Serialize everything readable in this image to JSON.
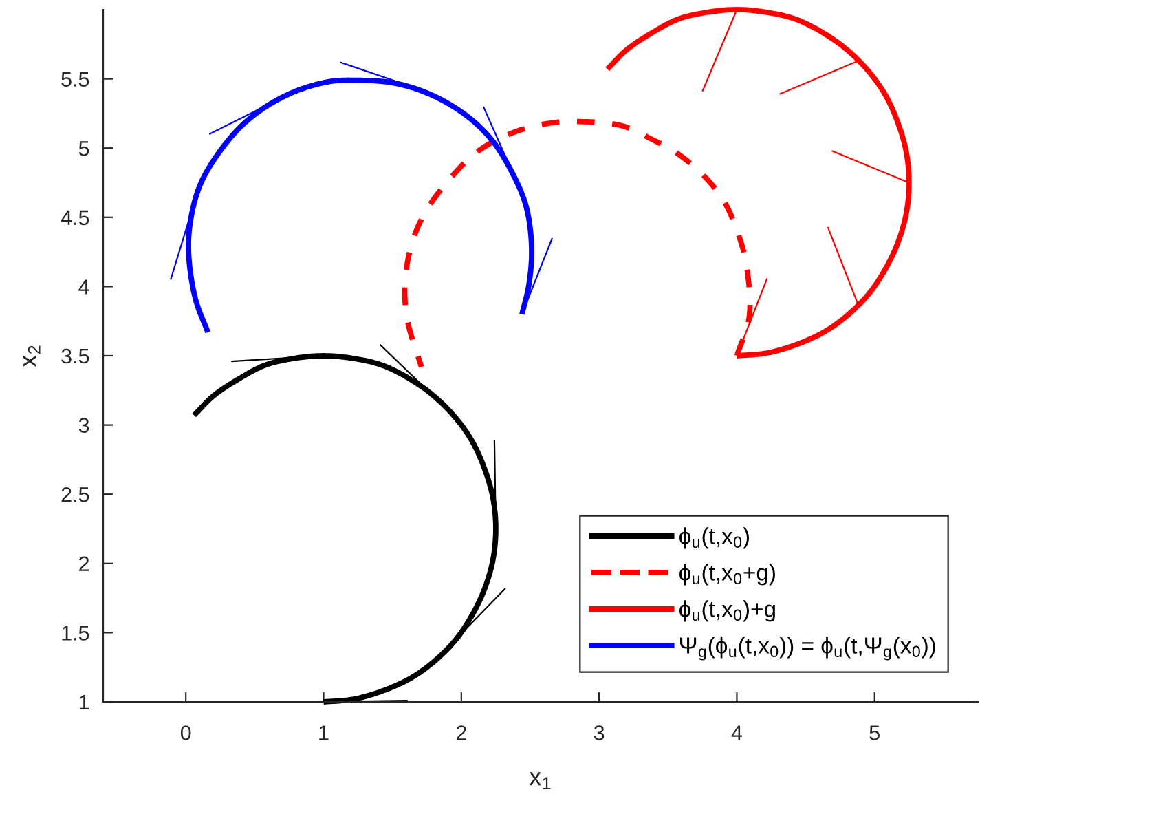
{
  "chart_data": {
    "type": "line",
    "xlabel": "x$_{1}$",
    "ylabel": "x$_{2}$",
    "xlim": [
      -0.6,
      5.75
    ],
    "ylim": [
      1,
      6
    ],
    "xticks": [
      0,
      1,
      2,
      3,
      4,
      5
    ],
    "yticks": [
      1,
      1.5,
      2,
      2.5,
      3,
      3.5,
      4,
      4.5,
      5,
      5.5
    ],
    "grid": false,
    "legend": "bottom right",
    "series": [
      {
        "name": "ϕ$_{u}$(t,x$_{0}$)",
        "color": "#000000",
        "line_style": "solid",
        "x": [
          1.0,
          1.22,
          1.43,
          1.63,
          1.8,
          1.96,
          2.08,
          2.17,
          2.23,
          2.25,
          2.23,
          2.17,
          2.08,
          1.96,
          1.8,
          1.63,
          1.43,
          1.22,
          1.0,
          0.78,
          0.57,
          0.38,
          0.2,
          0.06
        ],
        "values": [
          1.0,
          1.02,
          1.08,
          1.17,
          1.29,
          1.45,
          1.63,
          1.82,
          2.03,
          2.25,
          2.47,
          2.68,
          2.88,
          3.05,
          3.21,
          3.33,
          3.43,
          3.48,
          3.5,
          3.48,
          3.43,
          3.33,
          3.21,
          3.07
        ]
      },
      {
        "color": "#000000",
        "line_style": "solid",
        "x": [
          1.0,
          1.61,
          null,
          1.88,
          2.32,
          null,
          2.25,
          2.24,
          null,
          1.88,
          1.41,
          null,
          1.0,
          0.33
        ],
        "values": [
          1.0,
          1.01,
          null,
          1.37,
          1.82,
          null,
          2.25,
          2.89,
          null,
          3.13,
          3.58,
          null,
          3.5,
          3.46
        ]
      },
      {
        "name": "ϕ$_{u}$(t,x$_{0}$+g)",
        "color": "#ff0000",
        "line_style": "dashed",
        "x": [
          4.0,
          4.09,
          4.07,
          4.01,
          3.91,
          3.77,
          3.57,
          3.37,
          3.17,
          2.91,
          2.64,
          2.37,
          2.11,
          1.91,
          1.74,
          1.64,
          1.59,
          1.61,
          1.71
        ],
        "values": [
          3.5,
          3.78,
          4.15,
          4.38,
          4.61,
          4.79,
          4.96,
          5.07,
          5.16,
          5.19,
          5.18,
          5.11,
          4.97,
          4.77,
          4.54,
          4.31,
          4.01,
          3.75,
          3.42
        ]
      },
      {
        "name": "ϕ$_{u}$(t,x$_{0}$)+g",
        "color": "#ff0000",
        "line_style": "solid",
        "x": [
          4.0,
          4.22,
          4.43,
          4.63,
          4.8,
          4.96,
          5.08,
          5.17,
          5.23,
          5.25,
          5.23,
          5.17,
          5.08,
          4.96,
          4.8,
          4.63,
          4.43,
          4.22,
          4.0,
          3.78,
          3.57,
          3.38,
          3.2,
          3.06
        ],
        "values": [
          3.5,
          3.52,
          3.58,
          3.67,
          3.79,
          3.95,
          4.13,
          4.32,
          4.53,
          4.75,
          4.97,
          5.18,
          5.38,
          5.55,
          5.71,
          5.83,
          5.93,
          5.98,
          6.0,
          5.98,
          5.93,
          5.83,
          5.71,
          5.57
        ]
      },
      {
        "color": "#ff0000",
        "line_style": "solid",
        "x": [
          4.0,
          4.22,
          null,
          4.88,
          4.66,
          null,
          5.25,
          4.69,
          null,
          4.88,
          4.31,
          null,
          4.0,
          3.75
        ],
        "values": [
          3.5,
          4.06,
          null,
          3.87,
          4.43,
          null,
          4.75,
          4.98,
          null,
          5.63,
          5.39,
          null,
          6.0,
          5.41
        ]
      },
      {
        "name": "Ψ$_{g}$(ϕ$_{u}$(t,x$_{0}$)) = ϕ$_{u}$(t,Ψ$_{g}$(x$_{0}$))",
        "color": "#0000ff",
        "line_style": "solid",
        "x": [
          0.16,
          0.07,
          0.02,
          0.04,
          0.12,
          0.32,
          0.51,
          0.77,
          1.04,
          1.24,
          1.51,
          1.77,
          2.03,
          2.22,
          2.36,
          2.47,
          2.51,
          2.49,
          2.44
        ],
        "values": [
          3.67,
          3.91,
          4.25,
          4.51,
          4.77,
          5.07,
          5.25,
          5.4,
          5.48,
          5.49,
          5.47,
          5.39,
          5.24,
          5.06,
          4.84,
          4.58,
          4.28,
          4.01,
          3.8
        ]
      },
      {
        "color": "#0000ff",
        "line_style": "solid",
        "x": [
          2.44,
          2.66,
          null,
          2.4,
          2.16,
          null,
          1.71,
          1.12,
          null,
          0.75,
          0.17,
          null,
          0.09,
          -0.11
        ],
        "values": [
          3.8,
          4.35,
          null,
          4.76,
          5.3,
          null,
          5.42,
          5.62,
          null,
          5.39,
          5.1,
          null,
          4.7,
          4.05
        ]
      }
    ]
  }
}
